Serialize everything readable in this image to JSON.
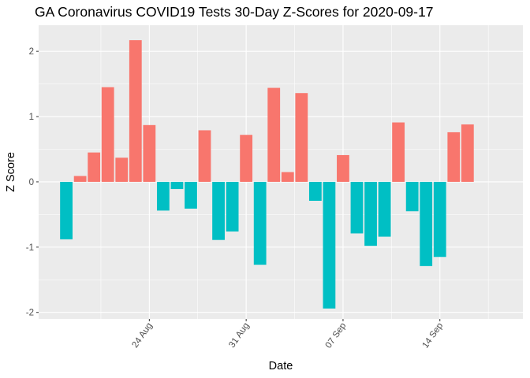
{
  "chart_data": {
    "type": "bar",
    "title": "GA Coronavirus COVID19 Tests 30-Day Z-Scores for 2020-09-17",
    "xlabel": "Date",
    "ylabel": "Z Score",
    "xlim": [
      "2020-08-16",
      "2020-09-20"
    ],
    "ylim": [
      -2.1,
      2.4
    ],
    "y_ticks": [
      -2,
      -1,
      0,
      1,
      2
    ],
    "x_ticks": [
      {
        "date": "2020-08-24",
        "label": "24 Aug"
      },
      {
        "date": "2020-08-31",
        "label": "31 Aug"
      },
      {
        "date": "2020-09-07",
        "label": "07 Sep"
      },
      {
        "date": "2020-09-14",
        "label": "14 Sep"
      }
    ],
    "grid": true,
    "legend": "none",
    "colors": {
      "positive": "#F8766D",
      "negative": "#00BFC4",
      "panel": "#EBEBEB",
      "grid": "#FFFFFF"
    },
    "x": [
      "2020-08-18",
      "2020-08-19",
      "2020-08-20",
      "2020-08-21",
      "2020-08-22",
      "2020-08-23",
      "2020-08-24",
      "2020-08-25",
      "2020-08-26",
      "2020-08-27",
      "2020-08-28",
      "2020-08-29",
      "2020-08-30",
      "2020-08-31",
      "2020-09-01",
      "2020-09-02",
      "2020-09-03",
      "2020-09-04",
      "2020-09-05",
      "2020-09-06",
      "2020-09-07",
      "2020-09-08",
      "2020-09-09",
      "2020-09-10",
      "2020-09-11",
      "2020-09-12",
      "2020-09-13",
      "2020-09-14",
      "2020-09-15",
      "2020-09-16",
      "2020-09-17"
    ],
    "values": [
      -0.88,
      0.09,
      0.45,
      1.45,
      0.37,
      2.17,
      0.87,
      -0.44,
      -0.11,
      -0.41,
      0.79,
      -0.89,
      -0.76,
      0.72,
      -1.27,
      1.44,
      0.15,
      1.36,
      -0.29,
      -1.94,
      0.41,
      -0.79,
      -0.98,
      -0.84,
      0.91,
      -0.45,
      -1.29,
      -1.15,
      0.76,
      0.88,
      0.0
    ]
  }
}
